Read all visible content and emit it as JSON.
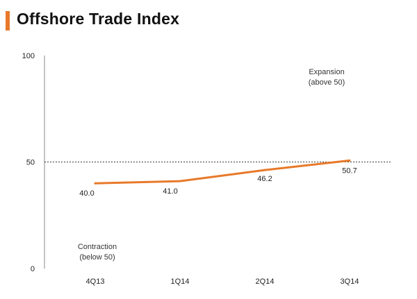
{
  "header": {
    "title": "Offshore Trade Index",
    "accent_color": "#e8792a"
  },
  "chart_data": {
    "type": "line",
    "title": "Offshore Trade Index",
    "xlabel": "",
    "ylabel": "",
    "categories": [
      "4Q13",
      "1Q14",
      "2Q14",
      "3Q14"
    ],
    "series": [
      {
        "values": [
          40.0,
          41.0,
          46.2,
          50.7
        ],
        "data_labels": [
          "40.0",
          "41.0",
          "46.2",
          "50.7"
        ],
        "color": "#e8792a"
      }
    ],
    "ylim": [
      0,
      100
    ],
    "y_ticks": [
      0,
      50,
      100
    ],
    "y_tick_labels": [
      "0",
      "50",
      "100"
    ],
    "reference_line": {
      "value": 50,
      "style": "dashed"
    },
    "annotations": {
      "expansion": [
        "Expansion",
        "(above 50)"
      ],
      "contraction": [
        "Contraction",
        "(below 50)"
      ]
    },
    "grid": false,
    "legend": "none"
  }
}
